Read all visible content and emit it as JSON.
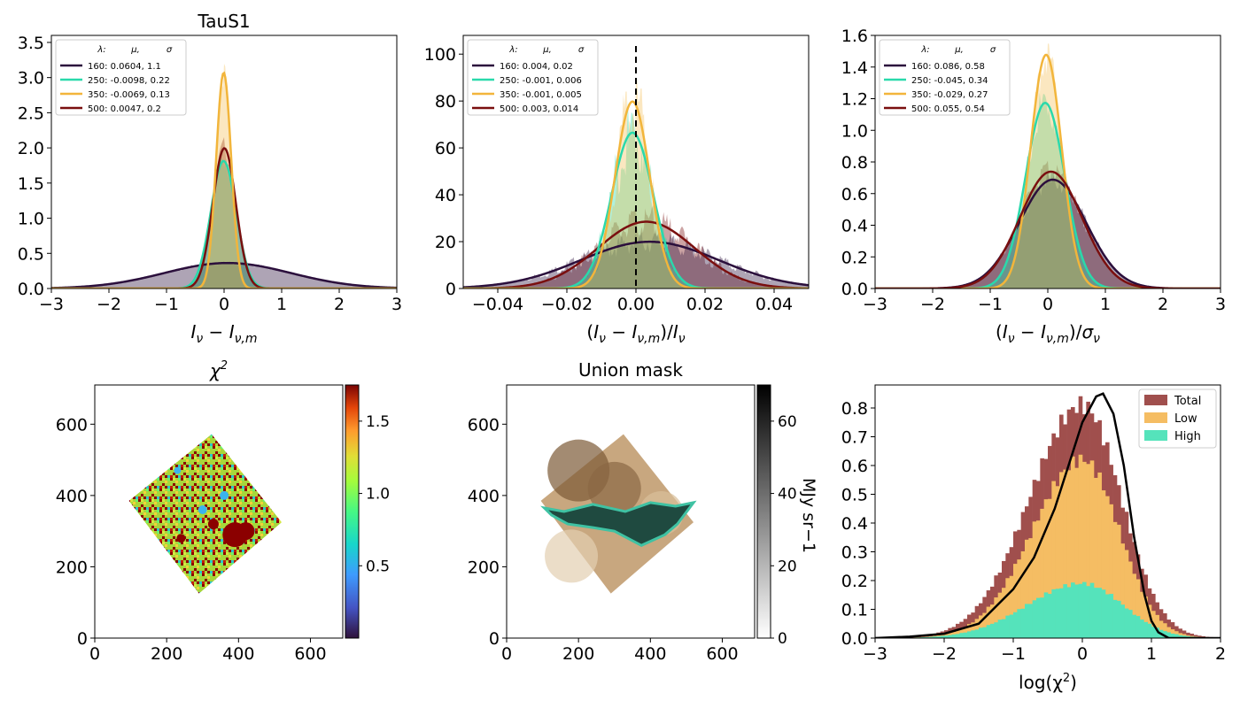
{
  "chart_data": [
    {
      "type": "area",
      "title": "TauS1",
      "xlabel": "I_ν − I_ν,m",
      "ylabel": "",
      "xlim": [
        -3,
        3
      ],
      "ylim": [
        0,
        3.6
      ],
      "xticks": [
        "−3",
        "−2",
        "−1",
        "0",
        "1",
        "2",
        "3"
      ],
      "yticks": [
        "0.0",
        "0.5",
        "1.0",
        "1.5",
        "2.0",
        "2.5",
        "3.0",
        "3.5"
      ],
      "legend": {
        "placement": "upper-left",
        "header": [
          "λ:",
          "μ,",
          "σ"
        ],
        "entries": [
          "160: 0.0604,  1.1",
          "250: -0.0098,  0.22",
          "350: -0.0069,  0.13",
          "500: 0.0047,  0.2"
        ]
      },
      "series": [
        {
          "name": "160",
          "mu": 0.0604,
          "sigma": 1.1,
          "color": "#2b0f3c"
        },
        {
          "name": "250",
          "mu": -0.0098,
          "sigma": 0.22,
          "color": "#2ad9ab"
        },
        {
          "name": "350",
          "mu": -0.0069,
          "sigma": 0.13,
          "color": "#f2b53b"
        },
        {
          "name": "500",
          "mu": 0.0047,
          "sigma": 0.2,
          "color": "#7a0f0f"
        }
      ]
    },
    {
      "type": "area",
      "title": "",
      "xlabel": "(I_ν − I_ν,m)/I_ν",
      "ylabel": "",
      "xlim": [
        -0.05,
        0.05
      ],
      "ylim": [
        0,
        108
      ],
      "xticks": [
        "−0.04",
        "−0.02",
        "0.00",
        "0.02",
        "0.04"
      ],
      "yticks": [
        "0",
        "20",
        "40",
        "60",
        "80",
        "100"
      ],
      "vline": 0,
      "legend": {
        "placement": "upper-left",
        "header": [
          "λ:",
          "μ,",
          "σ"
        ],
        "entries": [
          "160: 0.004,  0.02",
          "250: -0.001,  0.006",
          "350: -0.001,  0.005",
          "500: 0.003,  0.014"
        ]
      },
      "series": [
        {
          "name": "160",
          "mu": 0.004,
          "sigma": 0.02,
          "color": "#2b0f3c"
        },
        {
          "name": "250",
          "mu": -0.001,
          "sigma": 0.006,
          "color": "#2ad9ab"
        },
        {
          "name": "350",
          "mu": -0.001,
          "sigma": 0.005,
          "color": "#f2b53b"
        },
        {
          "name": "500",
          "mu": 0.003,
          "sigma": 0.014,
          "color": "#7a0f0f"
        }
      ]
    },
    {
      "type": "area",
      "title": "",
      "xlabel": "(I_ν − I_ν,m)/σ_ν",
      "ylabel": "",
      "xlim": [
        -3,
        3
      ],
      "ylim": [
        0,
        1.6
      ],
      "xticks": [
        "−3",
        "−2",
        "−1",
        "0",
        "1",
        "2",
        "3"
      ],
      "yticks": [
        "0.0",
        "0.2",
        "0.4",
        "0.6",
        "0.8",
        "1.0",
        "1.2",
        "1.4",
        "1.6"
      ],
      "legend": {
        "placement": "upper-left",
        "header": [
          "λ:",
          "μ,",
          "σ"
        ],
        "entries": [
          "160: 0.086,  0.58",
          "250: -0.045,  0.34",
          "350: -0.029,  0.27",
          "500: 0.055,  0.54"
        ]
      },
      "series": [
        {
          "name": "160",
          "mu": 0.086,
          "sigma": 0.58,
          "color": "#2b0f3c"
        },
        {
          "name": "250",
          "mu": -0.045,
          "sigma": 0.34,
          "color": "#2ad9ab"
        },
        {
          "name": "350",
          "mu": -0.029,
          "sigma": 0.27,
          "color": "#f2b53b"
        },
        {
          "name": "500",
          "mu": 0.055,
          "sigma": 0.54,
          "color": "#7a0f0f"
        }
      ]
    },
    {
      "type": "heatmap",
      "title": "χ2",
      "xlim": [
        0,
        690
      ],
      "ylim": [
        0,
        710
      ],
      "xticks": [
        "0",
        "200",
        "400",
        "600"
      ],
      "yticks": [
        "0",
        "200",
        "400",
        "600"
      ],
      "colorbar": {
        "colormap": "turbo",
        "range": [
          0,
          1.75
        ],
        "ticks": [
          "0.5",
          "1.0",
          "1.5"
        ]
      },
      "footprint": [
        [
          95,
          385
        ],
        [
          325,
          572
        ],
        [
          520,
          325
        ],
        [
          290,
          125
        ]
      ]
    },
    {
      "type": "heatmap",
      "title": "Union mask",
      "xlim": [
        0,
        690
      ],
      "ylim": [
        0,
        710
      ],
      "xticks": [
        "0",
        "200",
        "400",
        "600"
      ],
      "yticks": [
        "0",
        "200",
        "400",
        "600"
      ],
      "colorbar": {
        "colormap": "gray",
        "range": [
          0,
          70
        ],
        "ticks": [
          "0",
          "20",
          "40",
          "60"
        ],
        "label": "MJy sr−1"
      },
      "footprint": [
        [
          95,
          385
        ],
        [
          325,
          572
        ],
        [
          520,
          325
        ],
        [
          290,
          125
        ]
      ],
      "mask_region": [
        [
          105,
          365
        ],
        [
          160,
          355
        ],
        [
          240,
          375
        ],
        [
          330,
          355
        ],
        [
          400,
          380
        ],
        [
          470,
          370
        ],
        [
          520,
          380
        ],
        [
          475,
          320
        ],
        [
          440,
          290
        ],
        [
          375,
          260
        ],
        [
          300,
          300
        ],
        [
          240,
          310
        ],
        [
          170,
          320
        ],
        [
          125,
          345
        ]
      ]
    },
    {
      "type": "bar",
      "title": "",
      "xlabel": "log(χ2)",
      "ylabel": "",
      "xlim": [
        -3,
        2
      ],
      "ylim": [
        0,
        0.88
      ],
      "xticks": [
        "−3",
        "−2",
        "−1",
        "0",
        "1",
        "2"
      ],
      "yticks": [
        "0.0",
        "0.1",
        "0.2",
        "0.3",
        "0.4",
        "0.5",
        "0.6",
        "0.7",
        "0.8"
      ],
      "legend": {
        "placement": "upper-right",
        "entries": [
          "Total",
          "Low",
          "High"
        ]
      },
      "series": [
        {
          "name": "Total",
          "color": "#a04f4d",
          "mu": 0.0,
          "sigma": 0.4,
          "peak": 0.81
        },
        {
          "name": "Low",
          "color": "#f5bd63",
          "mu": 0.0,
          "sigma": 0.38,
          "peak": 0.62
        },
        {
          "name": "High",
          "color": "#55e3bb",
          "mu": 0.0,
          "sigma": 0.42,
          "peak": 0.19
        },
        {
          "name": "",
          "color": "#000000",
          "line": true,
          "x": [
            -3,
            -2.5,
            -2,
            -1.5,
            -1,
            -0.7,
            -0.4,
            -0.2,
            0,
            0.2,
            0.3,
            0.45,
            0.6,
            0.75,
            0.9,
            1.0,
            1.1,
            1.25,
            1.5,
            2
          ],
          "y": [
            0.0,
            0.005,
            0.015,
            0.05,
            0.17,
            0.28,
            0.45,
            0.6,
            0.75,
            0.84,
            0.85,
            0.78,
            0.6,
            0.35,
            0.15,
            0.06,
            0.02,
            0.0,
            0.0,
            0.0
          ]
        }
      ]
    }
  ]
}
